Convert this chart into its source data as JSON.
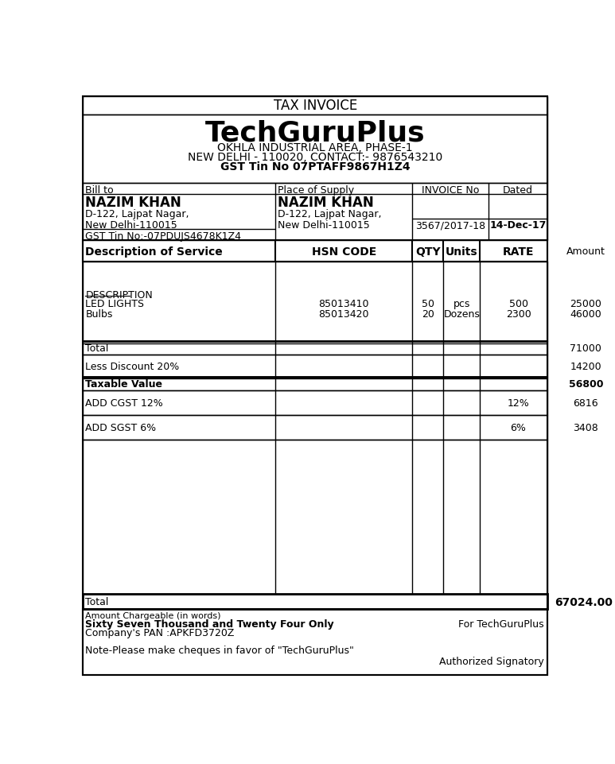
{
  "title": "TAX INVOICE",
  "company_name": "TechGuruPlus",
  "company_address1": "OKHLA INDUSTRIAL AREA, PHASE-1",
  "company_address2": "NEW DELHI - 110020, CONTACT:- 9876543210",
  "company_gst": "GST Tin No 07PTAFF9867H1Z4",
  "bill_to_label": "Bill to",
  "bill_to_name": "NAZIM KHAN",
  "bill_to_addr1": "D-122, Lajpat Nagar,",
  "bill_to_addr2": "New Delhi-110015",
  "bill_to_gst": "GST Tin No:-07PDUJS4678K1Z4",
  "supply_label": "Place of Supply",
  "supply_name": "NAZIM KHAN",
  "supply_addr1": "D-122, Lajpat Nagar,",
  "supply_addr2": "New Delhi-110015",
  "invoice_no_label": "INVOICE No",
  "invoice_no": "3567/2017-18",
  "dated_label": "Dated",
  "dated": "14-Dec-17",
  "col_desc": "Description of Service",
  "col_hsn": "HSN CODE",
  "col_qty": "QTY",
  "col_units": "Units",
  "col_rate": "RATE",
  "col_amount": "Amount",
  "desc_underline": "DESCRIPTION",
  "item1_desc": "LED LIGHTS",
  "item1_hsn": "85013410",
  "item1_qty": "50",
  "item1_units": "pcs",
  "item1_rate": "500",
  "item1_amount": "25000",
  "item2_desc": "Bulbs",
  "item2_hsn": "85013420",
  "item2_qty": "20",
  "item2_units": "Dozens",
  "item2_rate": "2300",
  "item2_amount": "46000",
  "total_label": "Total",
  "total_value": "71000",
  "discount_label": "Less Discount 20%",
  "discount_value": "14200",
  "taxable_label": "Taxable Value",
  "taxable_value": "56800",
  "cgst_label": "ADD CGST 12%",
  "cgst_rate": "12%",
  "cgst_value": "6816",
  "sgst_label": "ADD SGST 6%",
  "sgst_rate": "6%",
  "sgst_value": "3408",
  "grand_total_label": "Total",
  "grand_total_value": "67024.00",
  "amount_words_label": "Amount Chargeable (in words)",
  "amount_words": "Sixty Seven Thousand and Twenty Four Only",
  "pan_label": "Company's PAN :APKFD3720Z",
  "for_company": "For TechGuruPlus",
  "note": "Note-Please make cheques in favor of \"TechGuruPlus\"",
  "auth_label": "Authorized Signatory",
  "bg_color": "#ffffff"
}
